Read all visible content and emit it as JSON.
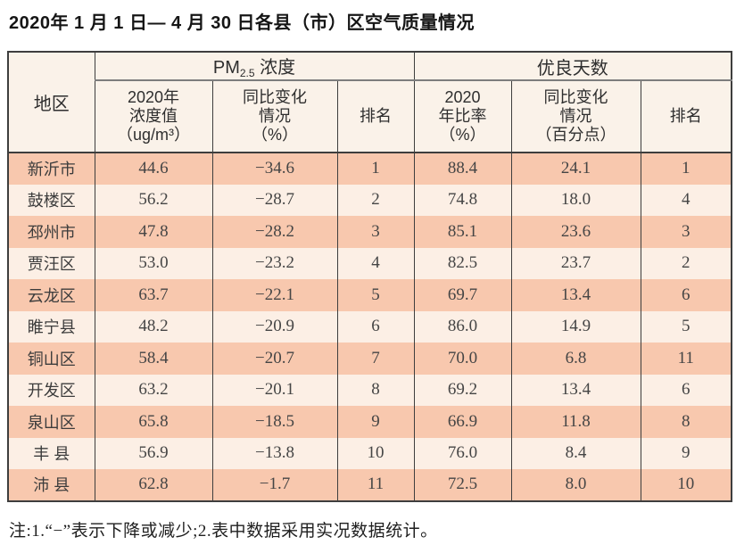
{
  "title": "2020年 1 月 1 日— 4 月 30 日各县（市）区空气质量情况",
  "colors": {
    "row_odd": "#f8c8ae",
    "row_even": "#fcefe5",
    "header_bg": "#faf2e9",
    "border_dark": "#3e3e3e",
    "border_gray": "#7d7d7d"
  },
  "table": {
    "header": {
      "region": "地区",
      "pm_group": {
        "prefix": "PM",
        "sub": "2.5",
        "suffix": " 浓度"
      },
      "good_group": "优良天数",
      "pm_value": "2020年\n浓度值\n（ug/m³）",
      "pm_change": "同比变化\n情况\n（%）",
      "pm_rank": "排名",
      "good_rate": "2020\n年比率\n（%）",
      "good_change": "同比变化\n情况\n（百分点）",
      "good_rank": "排名"
    },
    "rows": [
      {
        "region": "新沂市",
        "pm_value": "44.6",
        "pm_change": "−34.6",
        "pm_rank": "1",
        "good_rate": "88.4",
        "good_change": "24.1",
        "good_rank": "1"
      },
      {
        "region": "鼓楼区",
        "pm_value": "56.2",
        "pm_change": "−28.7",
        "pm_rank": "2",
        "good_rate": "74.8",
        "good_change": "18.0",
        "good_rank": "4"
      },
      {
        "region": "邳州市",
        "pm_value": "47.8",
        "pm_change": "−28.2",
        "pm_rank": "3",
        "good_rate": "85.1",
        "good_change": "23.6",
        "good_rank": "3"
      },
      {
        "region": "贾汪区",
        "pm_value": "53.0",
        "pm_change": "−23.2",
        "pm_rank": "4",
        "good_rate": "82.5",
        "good_change": "23.7",
        "good_rank": "2"
      },
      {
        "region": "云龙区",
        "pm_value": "63.7",
        "pm_change": "−22.1",
        "pm_rank": "5",
        "good_rate": "69.7",
        "good_change": "13.4",
        "good_rank": "6"
      },
      {
        "region": "睢宁县",
        "pm_value": "48.2",
        "pm_change": "−20.9",
        "pm_rank": "6",
        "good_rate": "86.0",
        "good_change": "14.9",
        "good_rank": "5"
      },
      {
        "region": "铜山区",
        "pm_value": "58.4",
        "pm_change": "−20.7",
        "pm_rank": "7",
        "good_rate": "70.0",
        "good_change": "6.8",
        "good_rank": "11"
      },
      {
        "region": "开发区",
        "pm_value": "63.2",
        "pm_change": "−20.1",
        "pm_rank": "8",
        "good_rate": "69.2",
        "good_change": "13.4",
        "good_rank": "6"
      },
      {
        "region": "泉山区",
        "pm_value": "65.8",
        "pm_change": "−18.5",
        "pm_rank": "9",
        "good_rate": "66.9",
        "good_change": "11.8",
        "good_rank": "8"
      },
      {
        "region": "丰 县",
        "pm_value": "56.9",
        "pm_change": "−13.8",
        "pm_rank": "10",
        "good_rate": "76.0",
        "good_change": "8.4",
        "good_rank": "9"
      },
      {
        "region": "沛 县",
        "pm_value": "62.8",
        "pm_change": "−1.7",
        "pm_rank": "11",
        "good_rate": "72.5",
        "good_change": "8.0",
        "good_rank": "10"
      }
    ]
  },
  "note": "注:1.“−”表示下降或减少;2.表中数据采用实况数据统计。"
}
